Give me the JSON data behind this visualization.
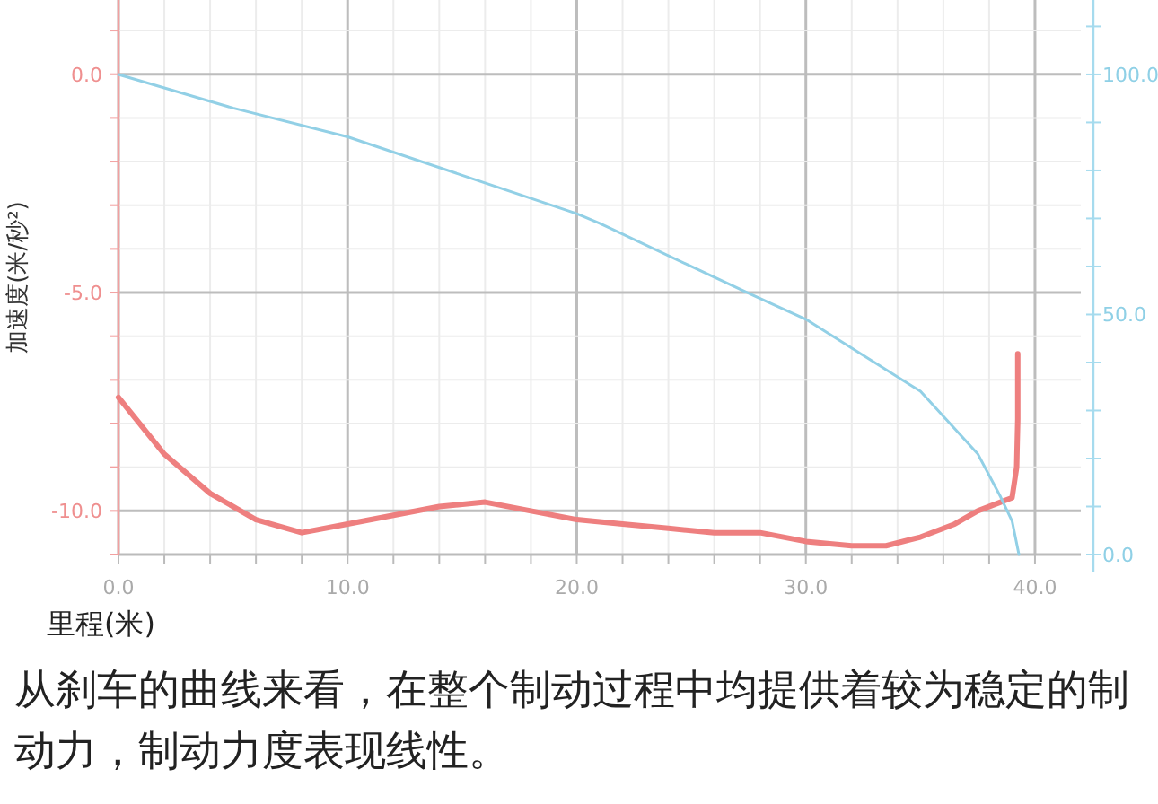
{
  "chart_data": {
    "type": "line",
    "xlabel": "里程(米)",
    "ylabel": "加速度(米/秒²)",
    "xlim": [
      0,
      42
    ],
    "xticks": [
      {
        "value": 0,
        "label": "0.0"
      },
      {
        "value": 2,
        "label": null
      },
      {
        "value": 4,
        "label": null
      },
      {
        "value": 6,
        "label": null
      },
      {
        "value": 8,
        "label": null
      },
      {
        "value": 10,
        "label": "10.0"
      },
      {
        "value": 12,
        "label": null
      },
      {
        "value": 14,
        "label": null
      },
      {
        "value": 16,
        "label": null
      },
      {
        "value": 18,
        "label": null
      },
      {
        "value": 20,
        "label": "20.0"
      },
      {
        "value": 22,
        "label": null
      },
      {
        "value": 24,
        "label": null
      },
      {
        "value": 26,
        "label": null
      },
      {
        "value": 28,
        "label": null
      },
      {
        "value": 30,
        "label": "30.0"
      },
      {
        "value": 32,
        "label": null
      },
      {
        "value": 34,
        "label": null
      },
      {
        "value": 36,
        "label": null
      },
      {
        "value": 38,
        "label": null
      },
      {
        "value": 40,
        "label": "40.0"
      }
    ],
    "ylim": [
      -11,
      1.7
    ],
    "yticks": [
      {
        "value": 1,
        "label": null
      },
      {
        "value": 0,
        "label": "0.0"
      },
      {
        "value": -1,
        "label": null
      },
      {
        "value": -2,
        "label": null
      },
      {
        "value": -3,
        "label": null
      },
      {
        "value": -4,
        "label": null
      },
      {
        "value": -5,
        "label": "-5.0"
      },
      {
        "value": -6,
        "label": null
      },
      {
        "value": -7,
        "label": null
      },
      {
        "value": -8,
        "label": null
      },
      {
        "value": -9,
        "label": null
      },
      {
        "value": -10,
        "label": "-10.0"
      },
      {
        "value": -11,
        "label": null
      }
    ],
    "y2lim": [
      0,
      115.5
    ],
    "y2ticks": [
      {
        "value": 0,
        "label": "0.0"
      },
      {
        "value": 10,
        "label": null
      },
      {
        "value": 20,
        "label": null
      },
      {
        "value": 30,
        "label": null
      },
      {
        "value": 40,
        "label": null
      },
      {
        "value": 50,
        "label": "50.0"
      },
      {
        "value": 60,
        "label": null
      },
      {
        "value": 70,
        "label": null
      },
      {
        "value": 80,
        "label": null
      },
      {
        "value": 90,
        "label": null
      },
      {
        "value": 100,
        "label": "100.0"
      },
      {
        "value": 110,
        "label": null
      }
    ],
    "grid": true,
    "marker": "none",
    "line_style": "solid",
    "series": [
      {
        "color": "#ee7f7f",
        "x": [
          0,
          2,
          4,
          6,
          8,
          10,
          12,
          14,
          16,
          18,
          20,
          22,
          24,
          26,
          28,
          30,
          32,
          33.5,
          35,
          36.5,
          37.5,
          38.5,
          39.0,
          39.2,
          39.25,
          39.25
        ],
        "values": [
          -7.4,
          -8.7,
          -9.6,
          -10.2,
          -10.5,
          -10.3,
          -10.1,
          -9.9,
          -9.8,
          -10.0,
          -10.2,
          -10.3,
          -10.4,
          -10.5,
          -10.5,
          -10.7,
          -10.8,
          -10.8,
          -10.6,
          -10.3,
          -10.0,
          -9.8,
          -9.7,
          -9.0,
          -7.9,
          -6.4
        ]
      },
      {
        "color": "#92d0e6",
        "axis": "y2",
        "x": [
          0,
          5,
          10,
          15,
          20,
          21,
          25,
          27.7,
          30,
          35,
          37.5,
          38.5,
          39,
          39.3
        ],
        "values": [
          100,
          93,
          87,
          79,
          71,
          69,
          60,
          54,
          49,
          34,
          21,
          12,
          7,
          0
        ]
      }
    ],
    "annotations": [
      "从刹车的曲线来看，在整个制动过程中均提供着较为稳定的制动力，制动力度表现线性。"
    ]
  }
}
